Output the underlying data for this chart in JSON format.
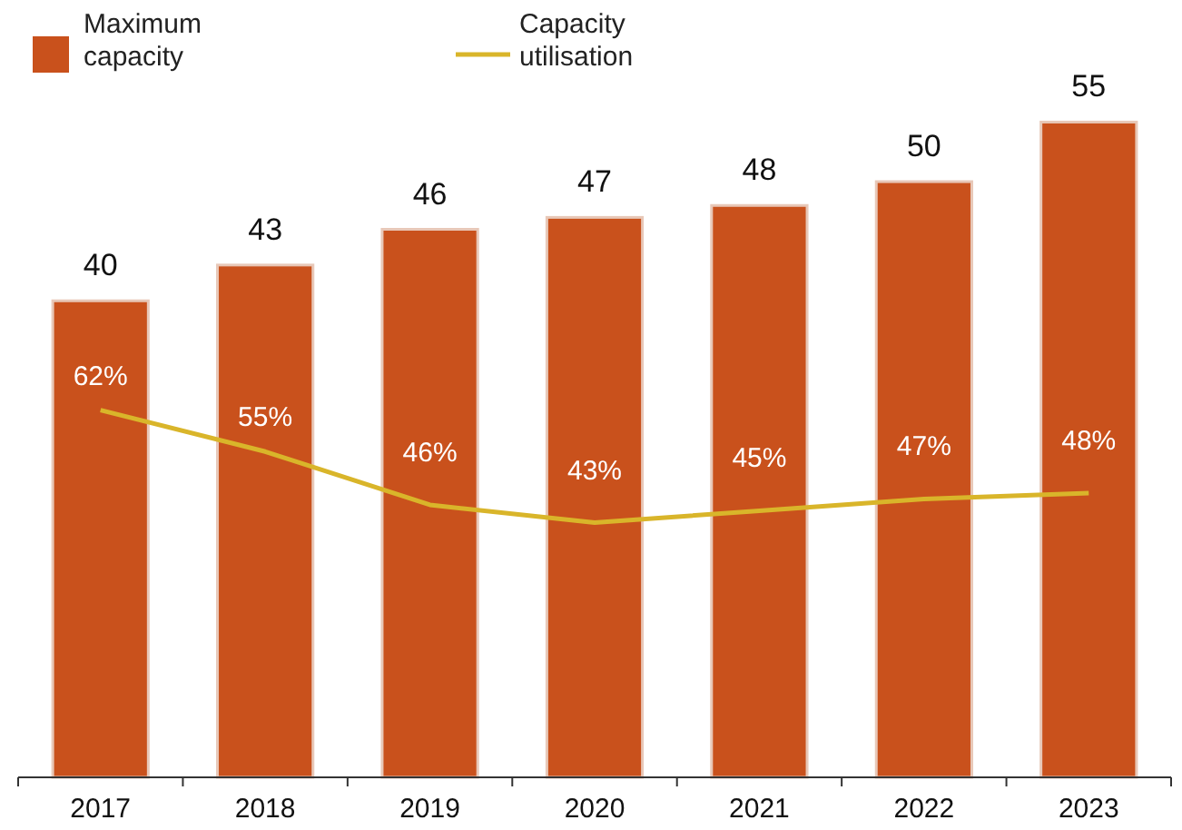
{
  "chart_data": {
    "type": "bar",
    "categories": [
      "2017",
      "2018",
      "2019",
      "2020",
      "2021",
      "2022",
      "2023"
    ],
    "series": [
      {
        "name": "Maximum capacity",
        "color": "#c9511c",
        "values": [
          40,
          43,
          46,
          47,
          48,
          50,
          55
        ]
      },
      {
        "name": "Capacity utilisation",
        "type": "line",
        "axis": "y2",
        "color": "#d9b52a",
        "values": [
          62,
          55,
          46,
          43,
          45,
          47,
          48
        ],
        "value_labels": [
          "62%",
          "55%",
          "46%",
          "43%",
          "45%",
          "47%",
          "48%"
        ]
      }
    ],
    "tick_labels": "x",
    "data_labels": true,
    "legend": "top left",
    "marker": "none"
  }
}
